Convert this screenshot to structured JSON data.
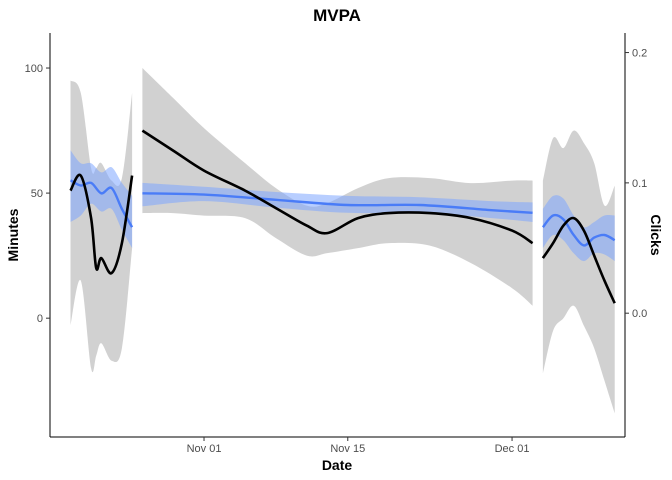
{
  "chart_data": {
    "type": "line",
    "title": "MVPA",
    "xlabel": "Date",
    "ylabel": "Minutes",
    "y2label": "Clicks",
    "x_ticks": [
      {
        "date": "2021-11-01",
        "label": "Nov 01"
      },
      {
        "date": "2021-11-15",
        "label": "Nov 15"
      },
      {
        "date": "2021-12-01",
        "label": "Dec 01"
      }
    ],
    "y_ticks": [
      0,
      50,
      100
    ],
    "y2_ticks": [
      0.0,
      0.1,
      0.2
    ],
    "xlim": [
      "2021-10-17",
      "2021-12-12"
    ],
    "ylim": [
      -47.5,
      114
    ],
    "y2lim": [
      -0.095,
      0.215
    ],
    "grid": false,
    "colors": {
      "minutes": "#000000",
      "minutes_band": "#bdbdbd",
      "clicks": "#4a7cf7",
      "clicks_band": "#7ea6ff"
    },
    "segments": [
      {
        "minutes": {
          "x": [
            "2021-10-19",
            "2021-10-20",
            "2021-10-21",
            "2021-10-21.5",
            "2021-10-22",
            "2021-10-23",
            "2021-10-24",
            "2021-10-25"
          ],
          "y": [
            51,
            57,
            40,
            20,
            24,
            18,
            30,
            57
          ],
          "lower": [
            -3,
            15,
            -20,
            -15,
            -10,
            -17,
            -12,
            28
          ],
          "upper": [
            95,
            90,
            60,
            60,
            62,
            55,
            56,
            90
          ]
        },
        "clicks": {
          "x": [
            "2021-10-19",
            "2021-10-20",
            "2021-10-21",
            "2021-10-22",
            "2021-10-23",
            "2021-10-24",
            "2021-10-25"
          ],
          "y": [
            0.102,
            0.098,
            0.1,
            0.092,
            0.096,
            0.08,
            0.066
          ],
          "lower": [
            0.07,
            0.075,
            0.084,
            0.078,
            0.08,
            0.064,
            0.05
          ],
          "upper": [
            0.125,
            0.115,
            0.115,
            0.108,
            0.112,
            0.1,
            0.09
          ]
        }
      },
      {
        "minutes": {
          "x": [
            "2021-10-26",
            "2021-10-29",
            "2021-11-01",
            "2021-11-05",
            "2021-11-08",
            "2021-11-11",
            "2021-11-13",
            "2021-11-16",
            "2021-11-19",
            "2021-11-23",
            "2021-11-27",
            "2021-12-01",
            "2021-12-03"
          ],
          "y": [
            75,
            67,
            59,
            51,
            44,
            37,
            34,
            40,
            42,
            42,
            40,
            35,
            30
          ],
          "lower": [
            42,
            42,
            41,
            40,
            32,
            25,
            26,
            28,
            30,
            29,
            22,
            12,
            5
          ],
          "upper": [
            100,
            88,
            76,
            62,
            52,
            45,
            46,
            52,
            56,
            56,
            54,
            55,
            55
          ]
        },
        "clicks": {
          "x": [
            "2021-10-26",
            "2021-11-01",
            "2021-11-08",
            "2021-11-15",
            "2021-11-22",
            "2021-11-29",
            "2021-12-03"
          ],
          "y": [
            0.092,
            0.091,
            0.087,
            0.083,
            0.083,
            0.079,
            0.077
          ],
          "lower": [
            0.082,
            0.086,
            0.081,
            0.077,
            0.077,
            0.073,
            0.07
          ],
          "upper": [
            0.1,
            0.097,
            0.093,
            0.09,
            0.089,
            0.086,
            0.085
          ]
        }
      },
      {
        "minutes": {
          "x": [
            "2021-12-04",
            "2021-12-05",
            "2021-12-06",
            "2021-12-07",
            "2021-12-08",
            "2021-12-09",
            "2021-12-10",
            "2021-12-11"
          ],
          "y": [
            24,
            30,
            37,
            40,
            35,
            25,
            15,
            6
          ],
          "lower": [
            -22,
            -5,
            0,
            5,
            -3,
            -12,
            -25,
            -38
          ],
          "upper": [
            55,
            72,
            68,
            75,
            70,
            62,
            45,
            53
          ]
        },
        "clicks": {
          "x": [
            "2021-12-04",
            "2021-12-05",
            "2021-12-06",
            "2021-12-07",
            "2021-12-08",
            "2021-12-09",
            "2021-12-10",
            "2021-12-11"
          ],
          "y": [
            0.066,
            0.075,
            0.072,
            0.06,
            0.052,
            0.058,
            0.06,
            0.056
          ],
          "lower": [
            0.05,
            0.06,
            0.056,
            0.046,
            0.04,
            0.046,
            0.045,
            0.04
          ],
          "upper": [
            0.08,
            0.09,
            0.088,
            0.075,
            0.066,
            0.07,
            0.075,
            0.075
          ]
        }
      }
    ]
  }
}
